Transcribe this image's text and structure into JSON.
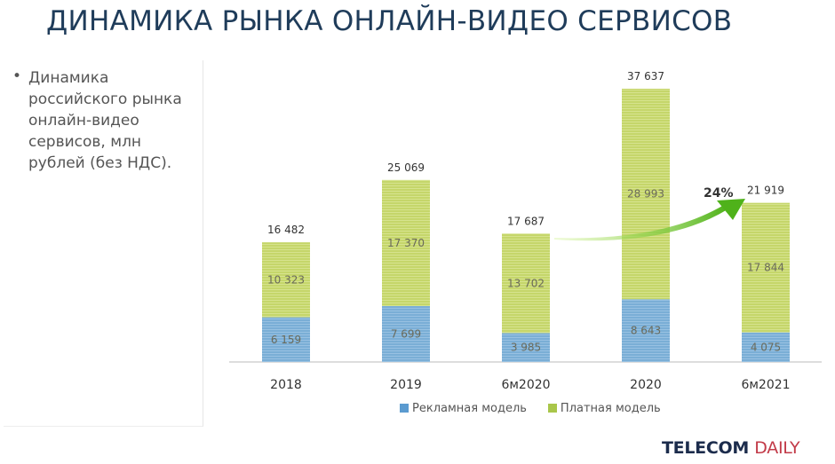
{
  "page_title": "ДИНАМИКА РЫНКА ОНЛАЙН-ВИДЕО СЕРВИСОВ",
  "description": "Динамика российского рынка онлайн-видео сервисов, млн рублей (без НДС).",
  "logo": {
    "part1": "TELECOM",
    "part2": "DAILY"
  },
  "chart_data": {
    "type": "bar",
    "stacked": true,
    "categories": [
      "2018",
      "2019",
      "6м2020",
      "2020",
      "6м2021"
    ],
    "series": [
      {
        "name": "Рекламная модель",
        "color": "#7aaed6",
        "values": [
          6159,
          7699,
          3985,
          8643,
          4075
        ],
        "labels": [
          "6 159",
          "7 699",
          "3 985",
          "8 643",
          "4 075"
        ]
      },
      {
        "name": "Платная модель",
        "color": "#c5d66a",
        "values": [
          10323,
          17370,
          13702,
          28993,
          17844
        ],
        "labels": [
          "10 323",
          "17 370",
          "13 702",
          "28 993",
          "17 844"
        ]
      }
    ],
    "totals": [
      16482,
      25069,
      17687,
      37637,
      21919
    ],
    "total_labels": [
      "16 482",
      "25 069",
      "17 687",
      "37 637",
      "21 919"
    ],
    "annotation": {
      "text": "24%",
      "from": "6м2020",
      "to": "6м2021"
    },
    "ylim": [
      0,
      37637
    ],
    "legend": "bottom",
    "grid": false
  }
}
